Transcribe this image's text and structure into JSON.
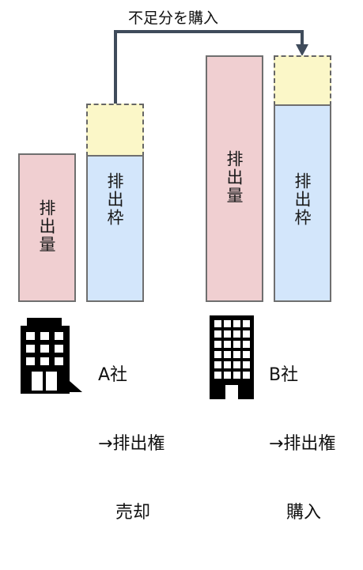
{
  "transfer": {
    "label": "不足分を購入"
  },
  "company_a": {
    "emission_label": "排出量",
    "allowance_label": "排出枠",
    "name": "A社",
    "action_line1": "→排出権",
    "action_line2": "売却",
    "icon": "office-building-icon"
  },
  "company_b": {
    "emission_label": "排出量",
    "allowance_label": "排出枠",
    "name": "B社",
    "action_line1": "→排出権",
    "action_line2": "購入",
    "icon": "office-tower-icon"
  },
  "colors": {
    "emission": "#f0cfd1",
    "allowance": "#d3e6fb",
    "surplus_shortfall": "#fbf7c8",
    "arrow": "#3f4b5b",
    "outline": "#6f6f6f"
  }
}
